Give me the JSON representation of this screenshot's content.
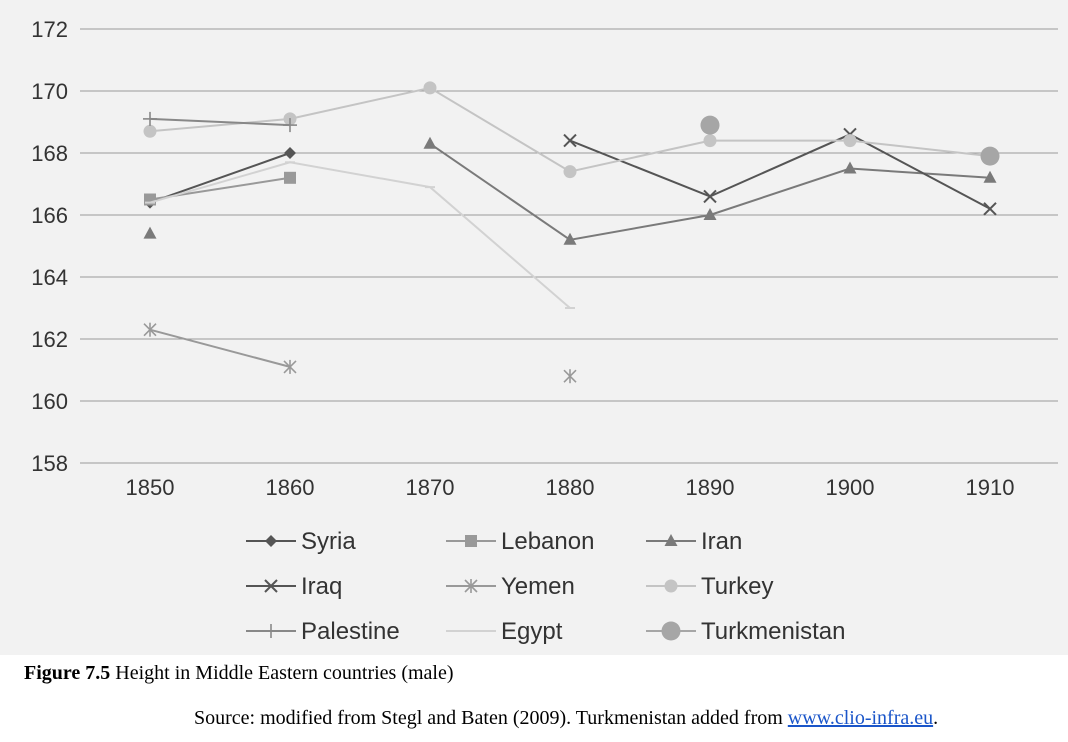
{
  "chart_data": {
    "type": "line",
    "x": [
      1850,
      1860,
      1870,
      1880,
      1890,
      1900,
      1910
    ],
    "ylim": [
      158,
      172
    ],
    "yticks": [
      158,
      160,
      162,
      164,
      166,
      168,
      170,
      172
    ],
    "grid": true,
    "legend_position": "bottom",
    "series": [
      {
        "name": "Syria",
        "marker": "diamond",
        "color": "#555555",
        "values": [
          166.4,
          168.0,
          null,
          null,
          null,
          null,
          null
        ]
      },
      {
        "name": "Lebanon",
        "marker": "square",
        "color": "#999999",
        "values": [
          166.5,
          167.2,
          null,
          null,
          null,
          null,
          null
        ]
      },
      {
        "name": "Iran",
        "marker": "triangle",
        "color": "#7a7a7a",
        "values": [
          165.4,
          null,
          168.3,
          165.2,
          166.0,
          167.5,
          167.2
        ]
      },
      {
        "name": "Iraq",
        "marker": "x",
        "color": "#555555",
        "values": [
          null,
          null,
          null,
          168.4,
          166.6,
          168.6,
          166.2
        ]
      },
      {
        "name": "Yemen",
        "marker": "asterisk",
        "color": "#999999",
        "values": [
          162.3,
          161.1,
          null,
          160.8,
          null,
          null,
          null
        ]
      },
      {
        "name": "Turkey",
        "marker": "circle",
        "color": "#c4c4c4",
        "values": [
          168.7,
          169.1,
          170.1,
          167.4,
          168.4,
          168.4,
          167.9
        ]
      },
      {
        "name": "Palestine",
        "marker": "plus",
        "color": "#888888",
        "values": [
          169.1,
          168.9,
          null,
          null,
          null,
          null,
          null
        ]
      },
      {
        "name": "Egypt",
        "marker": "dash",
        "color": "#d2d2d2",
        "values": [
          166.4,
          167.7,
          166.9,
          163.0,
          null,
          null,
          null
        ]
      },
      {
        "name": "Turkmenistan",
        "marker": "big-circle",
        "color": "#a6a6a6",
        "values": [
          null,
          null,
          null,
          null,
          168.9,
          null,
          167.9
        ]
      }
    ]
  },
  "caption": {
    "label": "Figure 7.5",
    "text": " Height in Middle Eastern countries (male)"
  },
  "source": {
    "text": "Source: modified from Stegl and Baten (2009). Turkmenistan added from ",
    "link": "www.clio-infra.eu",
    "end": "."
  }
}
